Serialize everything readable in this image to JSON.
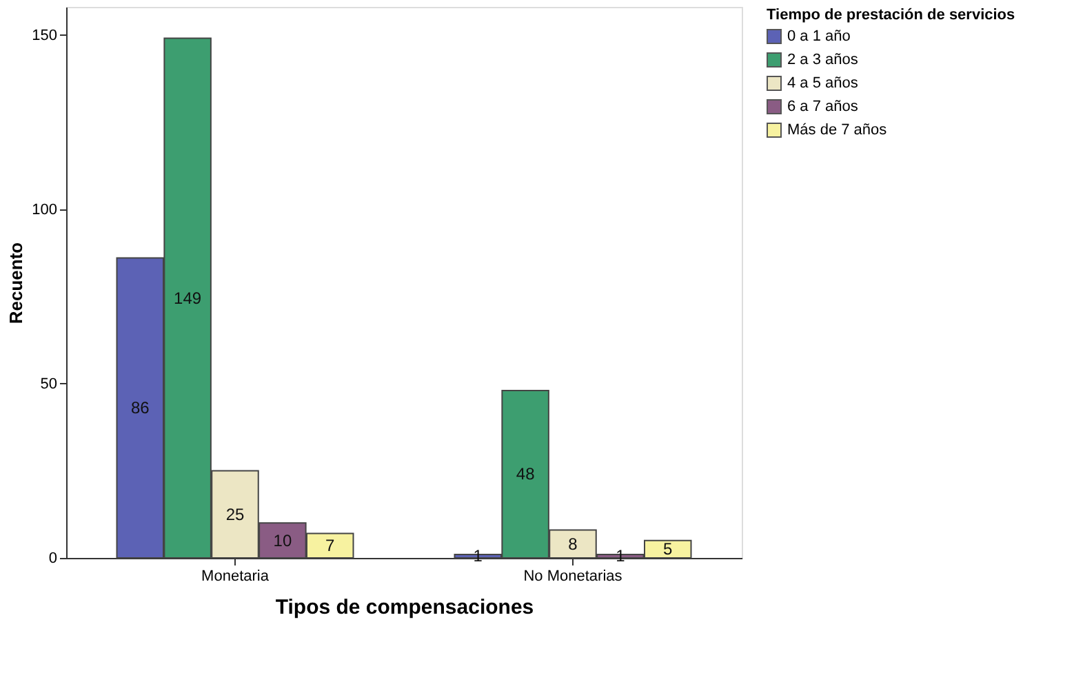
{
  "chart_data": {
    "type": "bar",
    "xlabel": "Tipos de compensaciones",
    "ylabel": "Recuento",
    "legend_title": "Tiempo de prestación de servicios",
    "categories": [
      "Monetaria",
      "No Monetarias"
    ],
    "series": [
      {
        "name": "0 a 1 año",
        "color": "#5c62b5",
        "values": [
          86,
          1
        ]
      },
      {
        "name": "2 a 3 años",
        "color": "#3d9e70",
        "values": [
          149,
          48
        ]
      },
      {
        "name": "4 a 5 años",
        "color": "#ece6c4",
        "values": [
          25,
          8
        ]
      },
      {
        "name": "6 a 7 años",
        "color": "#8a5c84",
        "values": [
          10,
          1
        ]
      },
      {
        "name": "Más de 7 años",
        "color": "#f7f2a0",
        "values": [
          7,
          5
        ]
      }
    ],
    "ylim": [
      0,
      158
    ],
    "yticks": [
      0,
      50,
      100,
      150
    ],
    "data_labels": true,
    "grid": false,
    "legend": "top right"
  }
}
